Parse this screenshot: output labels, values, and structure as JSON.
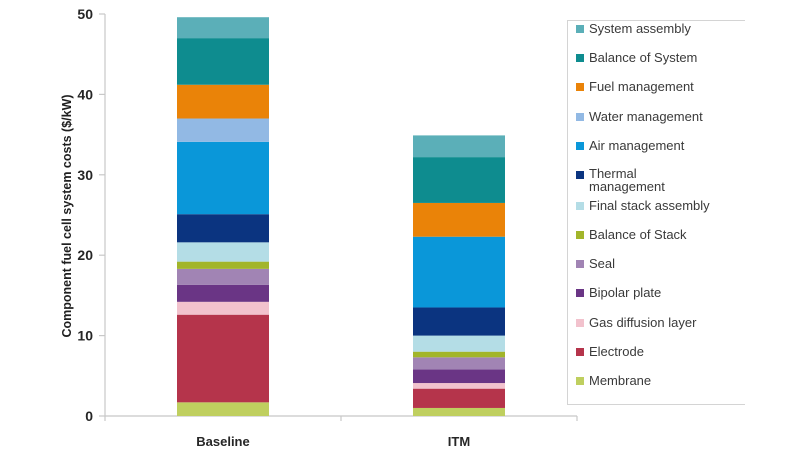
{
  "chart_data": {
    "type": "bar",
    "stacked": true,
    "title": "",
    "xlabel": "",
    "ylabel": "Component fuel cell system costs ($/kW)",
    "ylim": [
      0,
      50
    ],
    "yticks": [
      0,
      10,
      20,
      30,
      40,
      50
    ],
    "grid": false,
    "legend_position": "right",
    "categories": [
      "Baseline",
      "ITM"
    ],
    "series": [
      {
        "name": "Membrane",
        "color": "#bfcf5f",
        "values": [
          1.7,
          1.0
        ]
      },
      {
        "name": "Electrode",
        "color": "#b5344b",
        "values": [
          10.9,
          2.4
        ]
      },
      {
        "name": "Gas diffusion layer",
        "color": "#f2c2cd",
        "values": [
          1.6,
          0.7
        ]
      },
      {
        "name": "Bipolar plate",
        "color": "#6a3585",
        "values": [
          2.1,
          1.7
        ]
      },
      {
        "name": "Seal",
        "color": "#a184b4",
        "values": [
          2.0,
          1.5
        ]
      },
      {
        "name": "Balance of Stack",
        "color": "#a2b52a",
        "values": [
          0.9,
          0.7
        ]
      },
      {
        "name": "Final stack assembly",
        "color": "#b4dde6",
        "values": [
          2.4,
          2.0
        ]
      },
      {
        "name": "Thermal management",
        "color": "#0b3480",
        "values": [
          3.5,
          3.5
        ]
      },
      {
        "name": "Air management",
        "color": "#0a97d9",
        "values": [
          9.0,
          8.8
        ]
      },
      {
        "name": "Water management",
        "color": "#92b9e4",
        "values": [
          2.9,
          0.0
        ]
      },
      {
        "name": "Fuel management",
        "color": "#ea8308",
        "values": [
          4.2,
          4.2
        ]
      },
      {
        "name": "Balance of System",
        "color": "#0e8c8f",
        "values": [
          5.8,
          5.7
        ]
      },
      {
        "name": "System assembly",
        "color": "#5bafb8",
        "values": [
          2.6,
          2.7
        ]
      }
    ],
    "totals": [
      49.6,
      35.0
    ]
  },
  "legend": {
    "items": [
      {
        "label": "System assembly",
        "color": "#5bafb8"
      },
      {
        "label": "Balance of System",
        "color": "#0e8c8f"
      },
      {
        "label": "Fuel management",
        "color": "#ea8308"
      },
      {
        "label": "Water management",
        "color": "#92b9e4"
      },
      {
        "label": "Air management",
        "color": "#0a97d9"
      },
      {
        "label": "Thermal management",
        "color": "#0b3480"
      },
      {
        "label": "Final stack assembly",
        "color": "#b4dde6"
      },
      {
        "label": "Balance of Stack",
        "color": "#a2b52a"
      },
      {
        "label": "Seal",
        "color": "#a184b4"
      },
      {
        "label": "Bipolar plate",
        "color": "#6a3585"
      },
      {
        "label": "Gas diffusion layer",
        "color": "#f2c2cd"
      },
      {
        "label": "Electrode",
        "color": "#b5344b"
      },
      {
        "label": "Membrane",
        "color": "#bfcf5f"
      }
    ]
  }
}
